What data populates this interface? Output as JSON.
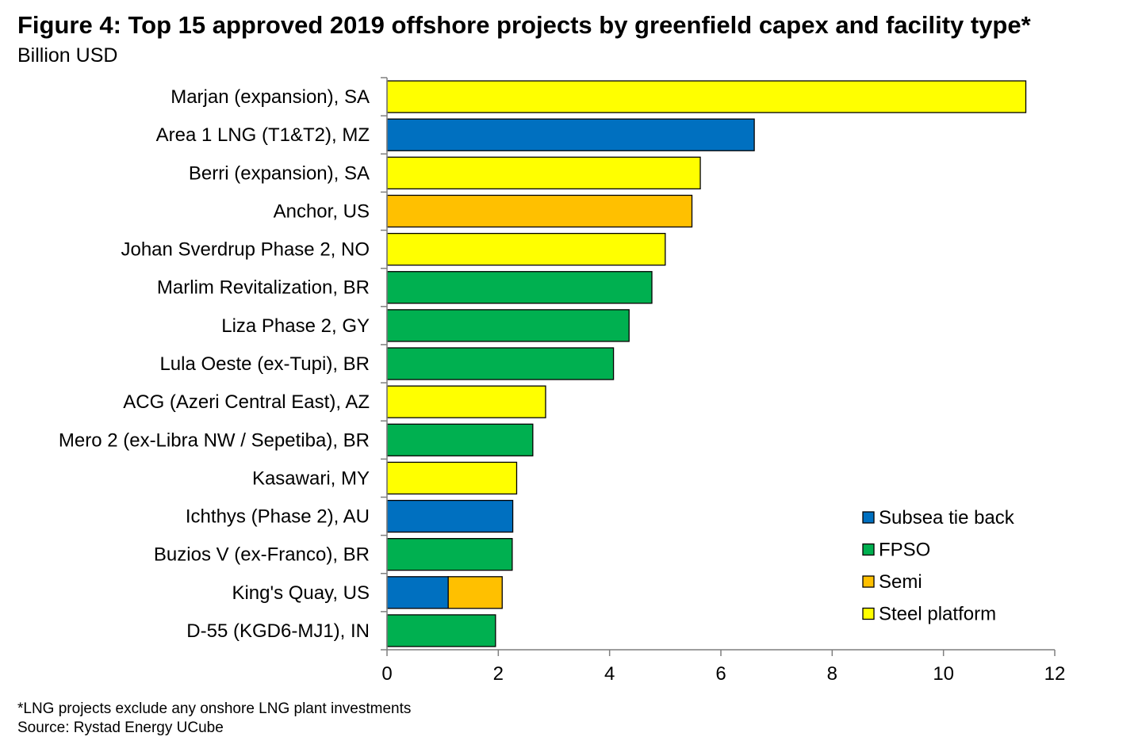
{
  "chart_data": {
    "type": "bar",
    "orientation": "horizontal",
    "stacked": true,
    "title": "Figure 4: Top 15 approved 2019 offshore projects by greenfield capex and facility type*",
    "subtitle": "Billion USD",
    "categories": [
      "Marjan (expansion), SA",
      "Area 1 LNG (T1&T2), MZ",
      "Berri (expansion), SA",
      "Anchor, US",
      "Johan Sverdrup Phase 2, NO",
      "Marlim Revitalization, BR",
      "Liza Phase 2, GY",
      "Lula Oeste (ex-Tupi), BR",
      "ACG (Azeri Central East), AZ",
      "Mero 2 (ex-Libra NW / Sepetiba), BR",
      "Kasawari, MY",
      "Ichthys (Phase 2), AU",
      "Buzios V (ex-Franco), BR",
      "King's Quay, US",
      "D-55 (KGD6-MJ1), IN"
    ],
    "series": [
      {
        "name": "Subsea tie back",
        "color": "#0070C0",
        "values": [
          0,
          6.6,
          0,
          0,
          0,
          0,
          0,
          0,
          0,
          0,
          0,
          2.26,
          0,
          1.1,
          0
        ]
      },
      {
        "name": "FPSO",
        "color": "#00B050",
        "values": [
          0,
          0,
          0,
          0,
          0,
          4.76,
          4.35,
          4.07,
          0,
          2.62,
          0,
          0,
          2.25,
          0,
          1.95
        ]
      },
      {
        "name": "Semi",
        "color": "#FFC000",
        "values": [
          0,
          0,
          0,
          5.48,
          0,
          0,
          0,
          0,
          0,
          0,
          0,
          0,
          0,
          0.97,
          0
        ]
      },
      {
        "name": "Steel platform",
        "color": "#FFFF00",
        "values": [
          11.48,
          0,
          5.63,
          0,
          5.0,
          0,
          0,
          0,
          2.85,
          0,
          2.33,
          0,
          0,
          0,
          0
        ]
      }
    ],
    "xlim": [
      0,
      12
    ],
    "xticks": [
      "0",
      "2",
      "4",
      "6",
      "8",
      "10",
      "12"
    ],
    "xlabel": "",
    "ylabel": "",
    "legend_position": "bottom-right",
    "grid": false
  },
  "footnotes": {
    "note": "*LNG projects exclude any onshore LNG plant investments",
    "source": "Source: Rystad Energy UCube"
  }
}
